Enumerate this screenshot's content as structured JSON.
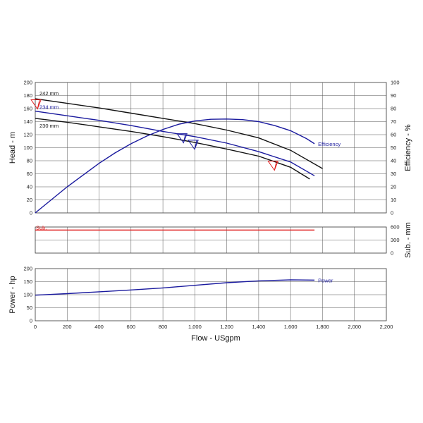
{
  "chart_data": [
    {
      "type": "line",
      "panel": "head-efficiency",
      "ylabel": "Head - m",
      "y2label": "Efficiency - %",
      "xlim": [
        0,
        2200
      ],
      "ylim": [
        0,
        200
      ],
      "y2lim": [
        0,
        100
      ],
      "yticks": [
        "0",
        "20",
        "40",
        "60",
        "80",
        "100",
        "120",
        "140",
        "160",
        "180",
        "200"
      ],
      "y2ticks": [
        "0",
        "10",
        "20",
        "30",
        "40",
        "50",
        "60",
        "70",
        "80",
        "90",
        "100"
      ],
      "grid": true,
      "series": [
        {
          "name": "242 mm",
          "axis": "left",
          "color": "#111111",
          "x": [
            0,
            200,
            400,
            600,
            800,
            1000,
            1200,
            1400,
            1600,
            1800
          ],
          "y": [
            175,
            168,
            161,
            153,
            145,
            137,
            127,
            115,
            96,
            68
          ]
        },
        {
          "name": "234 mm",
          "axis": "left",
          "color": "#1a1a9e",
          "x": [
            0,
            200,
            400,
            600,
            800,
            1000,
            1200,
            1400,
            1600,
            1750
          ],
          "y": [
            156,
            149,
            142,
            134,
            125,
            117,
            107,
            94,
            78,
            57
          ]
        },
        {
          "name": "230 mm",
          "axis": "left",
          "color": "#111111",
          "x": [
            0,
            200,
            400,
            600,
            800,
            1000,
            1200,
            1400,
            1600,
            1720
          ],
          "y": [
            145,
            139,
            132,
            125,
            117,
            108,
            98,
            87,
            70,
            52
          ]
        },
        {
          "name": "Efficiency",
          "axis": "right",
          "color": "#1a1a9e",
          "x": [
            0,
            100,
            200,
            300,
            400,
            500,
            600,
            700,
            800,
            900,
            1000,
            1100,
            1200,
            1300,
            1400,
            1500,
            1600,
            1700,
            1750
          ],
          "y": [
            0,
            10,
            20,
            29,
            38,
            46,
            53,
            59,
            64,
            68,
            70.5,
            71.8,
            72,
            71.5,
            70,
            67,
            63,
            57,
            53
          ]
        }
      ],
      "markers": [
        {
          "color": "#1a1a9e",
          "x": 920,
          "y": 115
        },
        {
          "color": "#1a1a9e",
          "x": 990,
          "y": 105
        },
        {
          "color": "#e02020",
          "x": 1490,
          "y": 73
        },
        {
          "color": "#e02020",
          "x": 5,
          "y": 167
        }
      ]
    },
    {
      "type": "line",
      "panel": "submergence",
      "y2label": "Sub. - mm",
      "xlim": [
        0,
        2200
      ],
      "y2lim": [
        0,
        600
      ],
      "y2ticks": [
        "0",
        "300",
        "600"
      ],
      "grid": true,
      "series": [
        {
          "name": "Sub.",
          "color": "#e02020",
          "x": [
            0,
            1750
          ],
          "y": [
            530,
            530
          ]
        }
      ]
    },
    {
      "type": "line",
      "panel": "power",
      "ylabel": "Power - hp",
      "xlabel": "Flow - USgpm",
      "xlim": [
        0,
        2200
      ],
      "ylim": [
        0,
        200
      ],
      "yticks": [
        "0",
        "50",
        "100",
        "150",
        "200"
      ],
      "xticks": [
        "0",
        "200",
        "400",
        "600",
        "800",
        "1,000",
        "1,200",
        "1,400",
        "1,600",
        "1,800",
        "2,000",
        "2,200"
      ],
      "grid": true,
      "series": [
        {
          "name": "Power",
          "color": "#1a1a9e",
          "x": [
            0,
            200,
            400,
            600,
            800,
            1000,
            1200,
            1400,
            1600,
            1750
          ],
          "y": [
            98,
            104,
            111,
            118,
            126,
            136,
            146,
            153,
            157,
            156
          ]
        }
      ]
    }
  ]
}
